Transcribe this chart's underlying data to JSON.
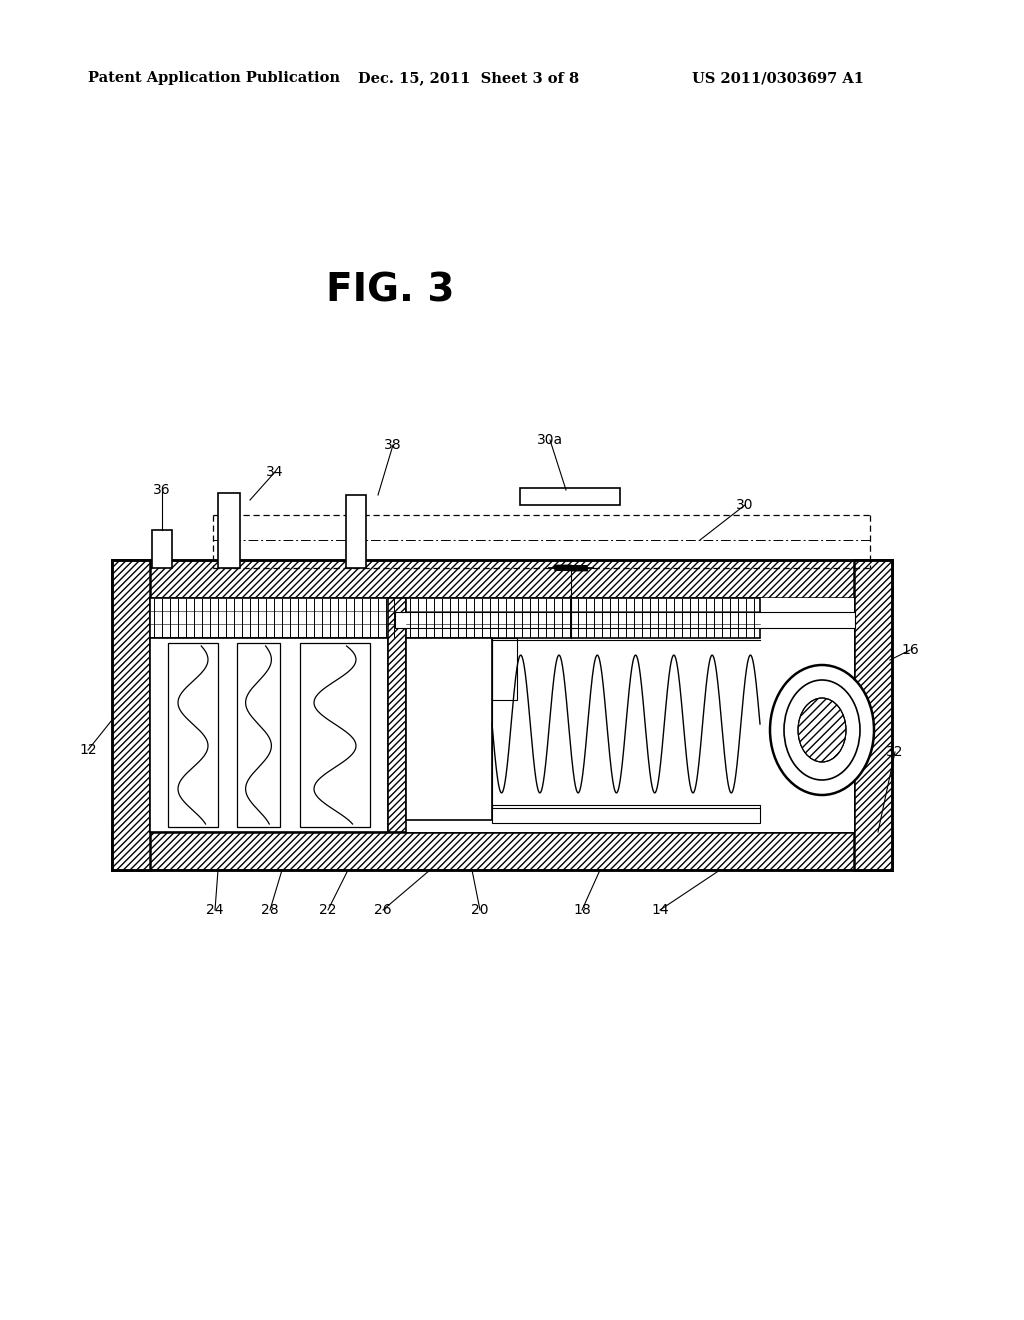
{
  "bg_color": "#ffffff",
  "header_left": "Patent Application Publication",
  "header_mid": "Dec. 15, 2011  Sheet 3 of 8",
  "header_right": "US 2011/0303697 A1",
  "fig_label": "FIG. 3",
  "lc": "#000000"
}
